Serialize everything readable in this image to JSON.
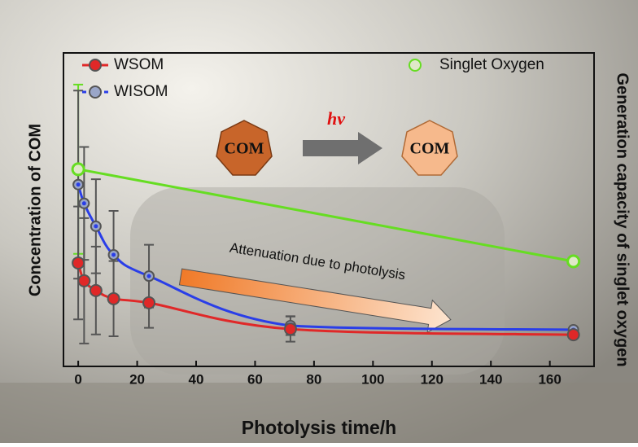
{
  "chart_data": {
    "type": "line",
    "x_label": "Photolysis time/h",
    "y_label": "Concentration of COM",
    "y2_label": "Generation capacity of singlet oxygen",
    "xlim": [
      -5,
      175
    ],
    "xticks": [
      0,
      20,
      40,
      60,
      80,
      100,
      120,
      140,
      160
    ],
    "ylim": [
      0,
      100
    ],
    "y2lim": [
      0,
      100
    ],
    "series": [
      {
        "name": "WSOM",
        "color": "#e02828",
        "x": [
          0,
          2,
          6,
          12,
          24,
          72,
          168
        ],
        "values": [
          33,
          27.3,
          24.2,
          21.6,
          20.3,
          11.9,
          10.1
        ],
        "errors": [
          18,
          20,
          14,
          12,
          8,
          4,
          0
        ]
      },
      {
        "name": "WISOM",
        "color": "#2a3ee8",
        "x": [
          0,
          2,
          6,
          12,
          24,
          72,
          168
        ],
        "values": [
          58,
          52,
          44.7,
          35.6,
          28.8,
          13,
          11.7
        ],
        "errors": [
          30,
          18,
          15,
          14,
          10,
          3,
          0
        ]
      },
      {
        "name": "Singlet Oxygen",
        "color": "#66dd22",
        "axis": "y2",
        "x": [
          0,
          168
        ],
        "values": [
          62.9,
          33.5
        ],
        "errors": [
          27,
          0
        ]
      }
    ],
    "annotations": {
      "com_before": "COM",
      "light": "hv",
      "com_after": "COM",
      "trend": "Attenuation due to photolysis"
    }
  }
}
